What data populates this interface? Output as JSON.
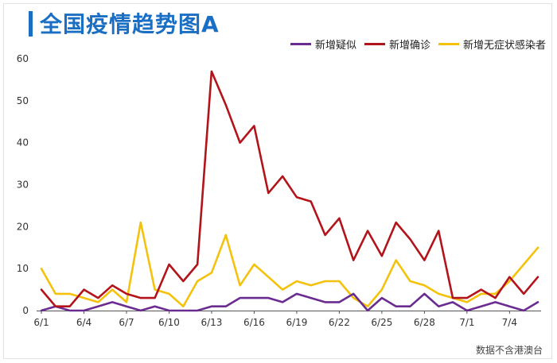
{
  "chart_data": {
    "type": "line",
    "title": "全国疫情趋势图A",
    "source_note": "数据不含港澳台",
    "x": [
      "6/1",
      "6/2",
      "6/3",
      "6/4",
      "6/5",
      "6/6",
      "6/7",
      "6/8",
      "6/9",
      "6/10",
      "6/11",
      "6/12",
      "6/13",
      "6/14",
      "6/15",
      "6/16",
      "6/17",
      "6/18",
      "6/19",
      "6/20",
      "6/21",
      "6/22",
      "6/23",
      "6/24",
      "6/25",
      "6/26",
      "6/27",
      "6/28",
      "6/29",
      "6/30",
      "7/1",
      "7/2",
      "7/3",
      "7/4",
      "7/5",
      "7/6"
    ],
    "x_tick_labels": [
      "6/1",
      "6/4",
      "6/7",
      "6/10",
      "6/13",
      "6/16",
      "6/19",
      "6/22",
      "6/25",
      "6/28",
      "7/1",
      "7/4"
    ],
    "ylim": [
      0,
      60
    ],
    "y_ticks": [
      0,
      10,
      20,
      30,
      40,
      50,
      60
    ],
    "grid": false,
    "legend_position": "top-right",
    "series": [
      {
        "name": "新增疑似",
        "color": "#6a2c91",
        "values": [
          0,
          1,
          0,
          0,
          1,
          2,
          1,
          0,
          1,
          0,
          0,
          0,
          1,
          1,
          3,
          3,
          3,
          2,
          4,
          3,
          2,
          2,
          4,
          0,
          3,
          1,
          1,
          4,
          1,
          2,
          0,
          1,
          2,
          1,
          0,
          2
        ]
      },
      {
        "name": "新增确诊",
        "color": "#b3141b",
        "values": [
          5,
          1,
          1,
          5,
          3,
          6,
          4,
          3,
          3,
          11,
          7,
          11,
          57,
          49,
          40,
          44,
          28,
          32,
          27,
          26,
          18,
          22,
          12,
          19,
          13,
          21,
          17,
          12,
          19,
          3,
          3,
          5,
          3,
          8,
          4,
          8
        ]
      },
      {
        "name": "新增无症状感染者",
        "color": "#f4c20d",
        "values": [
          10,
          4,
          4,
          3,
          2,
          5,
          2,
          21,
          5,
          4,
          1,
          7,
          9,
          18,
          6,
          11,
          8,
          5,
          7,
          6,
          7,
          7,
          3,
          1,
          5,
          12,
          7,
          6,
          4,
          3,
          2,
          4,
          4,
          7,
          11,
          15
        ]
      }
    ]
  }
}
